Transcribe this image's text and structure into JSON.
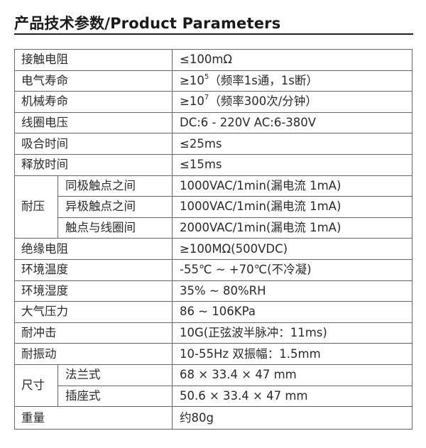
{
  "title": "产品技术参数/Product Parameters",
  "rows": [
    {
      "label": "接触电阻",
      "value": "≤100mΩ"
    },
    {
      "label": "电气寿命",
      "value_prefix": "≥10",
      "value_sup": "5",
      "value_suffix": "（频率1s通，1s断）"
    },
    {
      "label": "机械寿命",
      "value_prefix": "≥10",
      "value_sup": "7",
      "value_suffix": "（频率300次/分钟）"
    },
    {
      "label": "线圈电压",
      "value": "DC:6 - 220V AC:6-380V"
    },
    {
      "label": "吸合时间",
      "value": "≤25ms"
    },
    {
      "label": "释放时间",
      "value": "≤15ms"
    }
  ],
  "withstand": {
    "label": "耐压",
    "items": [
      {
        "label": "同极触点之间",
        "value": "1000VAC/1min(漏电流 1mA)"
      },
      {
        "label": "异极触点之间",
        "value": "1000VAC/1min(漏电流 1mA)"
      },
      {
        "label": "触点与线圈间",
        "value": "2000VAC/1min(漏电流 1mA)"
      }
    ]
  },
  "rows2": [
    {
      "label": "绝缘电阻",
      "value": "≥100MΩ(500VDC)"
    },
    {
      "label": "环境温度",
      "value": "-55℃ ~ +70℃(不冷凝)"
    },
    {
      "label": "环境湿度",
      "value": "35% ~ 80%RH"
    },
    {
      "label": "大气压力",
      "value": "86 ~ 106KPa"
    },
    {
      "label": "耐冲击",
      "value": "10G(正弦波半脉冲：11ms)"
    },
    {
      "label": "耐振动",
      "value": "10-55Hz 双振幅：1.5mm"
    }
  ],
  "size": {
    "label": "尺寸",
    "items": [
      {
        "label": "法兰式",
        "value": "68 × 33.4 × 47 mm"
      },
      {
        "label": "插座式",
        "value": "50.6 × 33.4 × 47 mm"
      }
    ]
  },
  "weight": {
    "label": "重量",
    "value": "约80g"
  }
}
